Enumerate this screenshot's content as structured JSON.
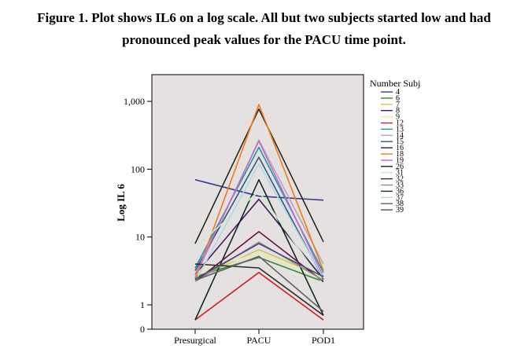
{
  "figure": {
    "caption_line1": "Figure 1. Plot shows IL6 on a log scale. All but two subjects started low and had",
    "caption_line2": "pronounced peak values for the PACU time point."
  },
  "chart_data": {
    "type": "line",
    "ylabel": "Log IL 6",
    "xlabel": "",
    "categories": [
      "Presurgical",
      "PACU",
      "POD1"
    ],
    "y_scale": "log",
    "y_ticks": [
      {
        "label": "0",
        "value": 0
      },
      {
        "label": "1",
        "value": 1
      },
      {
        "label": "10",
        "value": 10
      },
      {
        "label": "100",
        "value": 100
      },
      {
        "label": "1,000",
        "value": 1000
      }
    ],
    "plot_background": "#e6e1e1",
    "legend_title": "Number Subj",
    "legend_placement": "right",
    "series": [
      {
        "name": "4",
        "color": "#3b3b8f",
        "values": [
          70,
          40,
          35
        ]
      },
      {
        "name": "6",
        "color": "#2a8c2a",
        "values": [
          2.6,
          5,
          2.2
        ]
      },
      {
        "name": "7",
        "color": "#c8c85a",
        "values": [
          2.4,
          6.5,
          2.6
        ]
      },
      {
        "name": "8",
        "color": "#3d1a5c",
        "values": [
          2.8,
          36,
          2.4
        ]
      },
      {
        "name": "9",
        "color": "#f3ee8f",
        "values": [
          3,
          5.8,
          2.5
        ]
      },
      {
        "name": "12",
        "color": "#d11f1f",
        "values": [
          0.6,
          3,
          0.6
        ]
      },
      {
        "name": "13",
        "color": "#1b9c9c",
        "values": [
          3.5,
          210,
          3
        ]
      },
      {
        "name": "14",
        "color": "#b9a7b4",
        "values": [
          2.5,
          270,
          4
        ]
      },
      {
        "name": "15",
        "color": "#2e5a7a",
        "values": [
          3.2,
          150,
          2.4
        ]
      },
      {
        "name": "16",
        "color": "#1f2a20",
        "values": [
          8,
          770,
          8.5
        ]
      },
      {
        "name": "18",
        "color": "#f07a1a",
        "values": [
          2.4,
          900,
          3.2
        ]
      },
      {
        "name": "19",
        "color": "#c06bd6",
        "values": [
          2.8,
          260,
          2.6
        ]
      },
      {
        "name": "26",
        "color": "#0d2a2a",
        "values": [
          0.6,
          70,
          0.7
        ]
      },
      {
        "name": "31",
        "color": "#c9ecc9",
        "values": [
          7,
          47,
          2
        ]
      },
      {
        "name": "32",
        "color": "#6b0f3a",
        "values": [
          2.2,
          12,
          2.2
        ]
      },
      {
        "name": "33",
        "color": "#8f8f8f",
        "values": [
          2.2,
          8.4,
          2.3
        ]
      },
      {
        "name": "36",
        "color": "#2b2b2b",
        "values": [
          4,
          3.5,
          0.7
        ]
      },
      {
        "name": "37",
        "color": "#add8e6",
        "values": [
          2.2,
          120,
          2.5
        ]
      },
      {
        "name": "38",
        "color": "#606060",
        "values": [
          2.3,
          5.2,
          0.8
        ]
      },
      {
        "name": "39",
        "color": "#4a4a80",
        "values": [
          2.4,
          8,
          2.6
        ]
      }
    ]
  }
}
